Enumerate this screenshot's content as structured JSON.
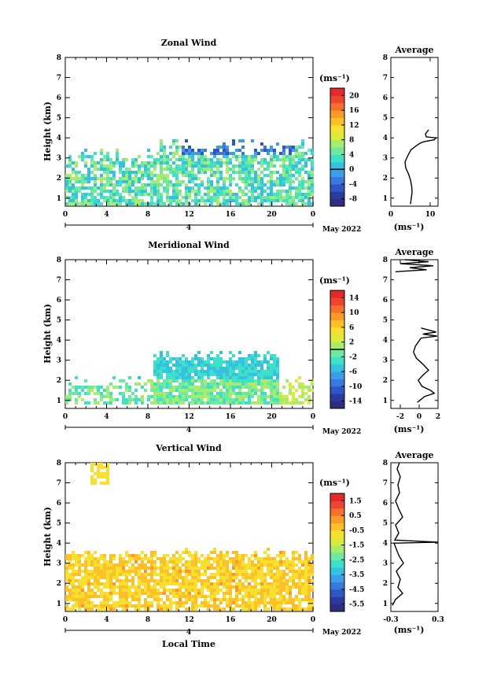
{
  "date_label": "May 2022",
  "xlabel_bottom": "Local Time",
  "unit_label": "(ms⁻¹)",
  "colors": {
    "zonal_scale": [
      "#2d2f7e",
      "#2b3a9c",
      "#2f56c5",
      "#3b78e0",
      "#3d9ee8",
      "#33c3e0",
      "#3ee0c8",
      "#6fe8a0",
      "#a8ec6c",
      "#dcea3e",
      "#f7e030",
      "#fcc028",
      "#fa9a2a",
      "#f4702c",
      "#ee4432",
      "#e22a2a"
    ],
    "meridional_scale": [
      "#2d2f7e",
      "#2b3a9c",
      "#2f56c5",
      "#3b78e0",
      "#3d9ee8",
      "#33c3e0",
      "#3ee0c8",
      "#6fe8a0",
      "#a8ec6c",
      "#dcea3e",
      "#f7e030",
      "#fcc028",
      "#fa9a2a",
      "#f4702c",
      "#ee4432",
      "#e22a2a"
    ],
    "vertical_scale": [
      "#2d2f7e",
      "#2b3a9c",
      "#2f56c5",
      "#3b78e0",
      "#3d9ee8",
      "#33c3e0",
      "#3ee0c8",
      "#6fe8a0",
      "#a8ec6c",
      "#dcea3e",
      "#f7e030",
      "#fcc028",
      "#fa9a2a",
      "#f4702c",
      "#ee4432",
      "#e22a2a"
    ]
  },
  "chart_data": [
    {
      "type": "heatmap",
      "title": "Zonal Wind",
      "ylabel": "Height (km)",
      "x_ticks": [
        "0",
        "4",
        "8",
        "12",
        "16",
        "20",
        "0"
      ],
      "xlim": [
        0,
        24
      ],
      "y_ticks": [
        "1",
        "2",
        "3",
        "4",
        "5",
        "6",
        "7",
        "8"
      ],
      "ylim": [
        0.6,
        8
      ],
      "day_label": "4",
      "colorbar": {
        "unit": "(ms⁻¹)",
        "ticks": [
          "20",
          "16",
          "12",
          "8",
          "4",
          "0",
          "-4",
          "-8"
        ],
        "range": [
          -10,
          22
        ],
        "zero_line": 0
      },
      "average": {
        "title": "Average",
        "xlabel": "(ms⁻¹)",
        "x_ticks": [
          "0",
          "10"
        ],
        "xlim": [
          0,
          12
        ],
        "profile": [
          [
            5.0,
            0.7
          ],
          [
            5.2,
            1.0
          ],
          [
            5.4,
            1.3
          ],
          [
            5.3,
            1.6
          ],
          [
            5.0,
            1.9
          ],
          [
            4.5,
            2.2
          ],
          [
            3.8,
            2.5
          ],
          [
            3.6,
            2.8
          ],
          [
            4.3,
            3.1
          ],
          [
            5.1,
            3.4
          ],
          [
            6.4,
            3.6
          ],
          [
            7.6,
            3.75
          ],
          [
            8.6,
            3.82
          ],
          [
            11.0,
            3.9
          ],
          [
            11.5,
            4.0
          ],
          [
            9.0,
            4.05
          ],
          [
            8.8,
            4.2
          ],
          [
            9.6,
            4.4
          ]
        ]
      }
    },
    {
      "type": "heatmap",
      "title": "Meridional Wind",
      "ylabel": "Height (km)",
      "x_ticks": [
        "0",
        "4",
        "8",
        "12",
        "16",
        "20",
        "0"
      ],
      "xlim": [
        0,
        24
      ],
      "y_ticks": [
        "1",
        "2",
        "3",
        "4",
        "5",
        "6",
        "7",
        "8"
      ],
      "ylim": [
        0.6,
        8
      ],
      "day_label": "4",
      "colorbar": {
        "unit": "(ms⁻¹)",
        "ticks": [
          "14",
          "10",
          "6",
          "2",
          "-2",
          "-6",
          "-10",
          "-14"
        ],
        "range": [
          -16,
          16
        ],
        "zero_line": 0
      },
      "average": {
        "title": "Average",
        "xlabel": "(ms⁻¹)",
        "x_ticks": [
          "-2",
          "0",
          "2"
        ],
        "xlim": [
          -3,
          2
        ],
        "profile": [
          [
            -0.2,
            0.9
          ],
          [
            0.6,
            1.2
          ],
          [
            1.6,
            1.35
          ],
          [
            1.2,
            1.5
          ],
          [
            0.3,
            1.7
          ],
          [
            -0.1,
            2.0
          ],
          [
            0.5,
            2.3
          ],
          [
            1.0,
            2.5
          ],
          [
            0.4,
            2.8
          ],
          [
            -0.3,
            3.1
          ],
          [
            -0.6,
            3.4
          ],
          [
            -0.4,
            3.7
          ],
          [
            -0.1,
            3.9
          ],
          [
            0.2,
            4.1
          ],
          [
            1.9,
            4.2
          ],
          [
            0.4,
            4.3
          ],
          [
            1.8,
            4.4
          ],
          [
            0.2,
            4.6
          ]
        ],
        "profile_top": [
          [
            -2.5,
            7.4
          ],
          [
            0.8,
            7.5
          ],
          [
            -1.0,
            7.6
          ],
          [
            1.5,
            7.7
          ],
          [
            -2.0,
            7.8
          ],
          [
            1.0,
            7.9
          ],
          [
            -1.5,
            8.0
          ]
        ]
      }
    },
    {
      "type": "heatmap",
      "title": "Vertical Wind",
      "ylabel": "Height (km)",
      "xlabel": "Local Time",
      "x_ticks": [
        "0",
        "4",
        "8",
        "12",
        "16",
        "20",
        "0"
      ],
      "xlim": [
        0,
        24
      ],
      "y_ticks": [
        "1",
        "2",
        "3",
        "4",
        "5",
        "6",
        "7",
        "8"
      ],
      "ylim": [
        0.6,
        8
      ],
      "day_label": "4",
      "colorbar": {
        "unit": "(ms⁻¹)",
        "ticks": [
          "1.5",
          "0.5",
          "-0.5",
          "-1.5",
          "-2.5",
          "-3.5",
          "-4.5",
          "-5.5"
        ],
        "range": [
          -6,
          2
        ]
      },
      "average": {
        "title": "Average",
        "xlabel": "(ms⁻¹)",
        "x_ticks": [
          "-0.3",
          "0.3"
        ],
        "xlim": [
          -0.3,
          0.3
        ],
        "profile": [
          [
            -0.28,
            0.9
          ],
          [
            -0.24,
            1.2
          ],
          [
            -0.15,
            1.5
          ],
          [
            -0.21,
            1.8
          ],
          [
            -0.18,
            2.2
          ],
          [
            -0.23,
            2.6
          ],
          [
            -0.14,
            3.0
          ],
          [
            -0.2,
            3.4
          ],
          [
            -0.24,
            3.8
          ],
          [
            -0.26,
            4.0
          ],
          [
            0.3,
            4.05
          ],
          [
            -0.25,
            4.15
          ],
          [
            -0.2,
            4.5
          ],
          [
            -0.24,
            4.9
          ],
          [
            -0.15,
            5.3
          ],
          [
            -0.2,
            5.7
          ],
          [
            -0.24,
            6.1
          ],
          [
            -0.19,
            6.5
          ],
          [
            -0.21,
            6.9
          ],
          [
            -0.18,
            7.3
          ],
          [
            -0.22,
            7.7
          ],
          [
            -0.19,
            8.0
          ]
        ]
      }
    }
  ]
}
